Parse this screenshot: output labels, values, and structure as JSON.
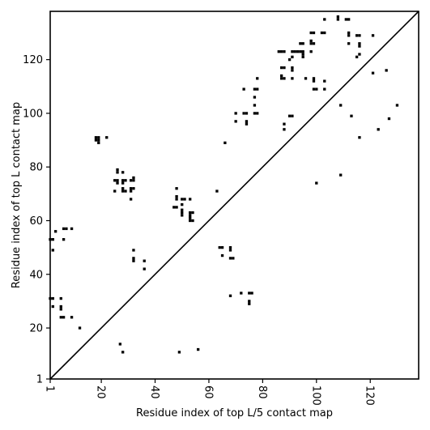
{
  "chart_data": {
    "type": "scatter",
    "xlabel": "Residue index of top L/5 contact map",
    "ylabel": "Residue index of top L contact map",
    "xlim": [
      1,
      138
    ],
    "ylim": [
      1,
      138
    ],
    "xticks": [
      {
        "value": 1,
        "label": "1"
      },
      {
        "value": 20,
        "label": "20"
      },
      {
        "value": 40,
        "label": "40"
      },
      {
        "value": 60,
        "label": "60"
      },
      {
        "value": 80,
        "label": "80"
      },
      {
        "value": 100,
        "label": "100"
      },
      {
        "value": 120,
        "label": "120"
      }
    ],
    "yticks": [
      {
        "value": 1,
        "label": "1"
      },
      {
        "value": 20,
        "label": "20"
      },
      {
        "value": 40,
        "label": "40"
      },
      {
        "value": 60,
        "label": "60"
      },
      {
        "value": 80,
        "label": "80"
      },
      {
        "value": 100,
        "label": "100"
      },
      {
        "value": 120,
        "label": "120"
      }
    ],
    "diagonal": true,
    "grid": false,
    "legend": "none",
    "marker_color": "#000000",
    "upper_triangle_points": [
      [
        18,
        91
      ],
      [
        18,
        90
      ],
      [
        19,
        91
      ],
      [
        19,
        90
      ],
      [
        19,
        89
      ],
      [
        22,
        91
      ],
      [
        26,
        79
      ],
      [
        26,
        78
      ],
      [
        25,
        75
      ],
      [
        26,
        75
      ],
      [
        26,
        74
      ],
      [
        25,
        71
      ],
      [
        28,
        78
      ],
      [
        28,
        75
      ],
      [
        29,
        75
      ],
      [
        28,
        74
      ],
      [
        28,
        72
      ],
      [
        29,
        71
      ],
      [
        28,
        71
      ],
      [
        31,
        75
      ],
      [
        32,
        76
      ],
      [
        32,
        75
      ],
      [
        31,
        72
      ],
      [
        32,
        72
      ],
      [
        31,
        71
      ],
      [
        31,
        68
      ],
      [
        48,
        72
      ],
      [
        48,
        69
      ],
      [
        48,
        68
      ],
      [
        47,
        65
      ],
      [
        48,
        65
      ],
      [
        50,
        68
      ],
      [
        51,
        68
      ],
      [
        50,
        66
      ],
      [
        50,
        64
      ],
      [
        50,
        63
      ],
      [
        50,
        62
      ],
      [
        53,
        68
      ],
      [
        53,
        63
      ],
      [
        54,
        63
      ],
      [
        53,
        62
      ],
      [
        53,
        61
      ],
      [
        53,
        60
      ],
      [
        54,
        60
      ],
      [
        63,
        71
      ],
      [
        66,
        89
      ],
      [
        70,
        100
      ],
      [
        70,
        97
      ],
      [
        73,
        100
      ],
      [
        74,
        100
      ],
      [
        74,
        97
      ],
      [
        74,
        96
      ],
      [
        73,
        109
      ],
      [
        77,
        109
      ],
      [
        78,
        109
      ],
      [
        77,
        106
      ],
      [
        77,
        103
      ],
      [
        77,
        100
      ],
      [
        78,
        100
      ],
      [
        78,
        113
      ],
      [
        86,
        123
      ],
      [
        87,
        123
      ],
      [
        88,
        123
      ],
      [
        87,
        117
      ],
      [
        88,
        117
      ],
      [
        87,
        114
      ],
      [
        87,
        113
      ],
      [
        88,
        113
      ],
      [
        88,
        96
      ],
      [
        88,
        94
      ],
      [
        90,
        120
      ],
      [
        91,
        121
      ],
      [
        91,
        123
      ],
      [
        92,
        123
      ],
      [
        93,
        123
      ],
      [
        91,
        117
      ],
      [
        91,
        116
      ],
      [
        91,
        113
      ],
      [
        91,
        99
      ],
      [
        90,
        99
      ],
      [
        94,
        126
      ],
      [
        95,
        126
      ],
      [
        94,
        123
      ],
      [
        95,
        123
      ],
      [
        95,
        122
      ],
      [
        95,
        121
      ],
      [
        96,
        113
      ],
      [
        98,
        130
      ],
      [
        99,
        130
      ],
      [
        98,
        127
      ],
      [
        98,
        126
      ],
      [
        99,
        126
      ],
      [
        98,
        123
      ],
      [
        99,
        113
      ],
      [
        99,
        112
      ],
      [
        99,
        109
      ],
      [
        100,
        109
      ],
      [
        100,
        74
      ],
      [
        102,
        130
      ],
      [
        103,
        130
      ],
      [
        103,
        135
      ],
      [
        103,
        112
      ],
      [
        103,
        109
      ],
      [
        108,
        136
      ],
      [
        108,
        135
      ],
      [
        109,
        103
      ],
      [
        109,
        77
      ],
      [
        111,
        135
      ],
      [
        112,
        135
      ],
      [
        112,
        130
      ],
      [
        112,
        129
      ],
      [
        112,
        126
      ],
      [
        113,
        99
      ],
      [
        115,
        129
      ],
      [
        116,
        129
      ],
      [
        116,
        126
      ],
      [
        116,
        125
      ],
      [
        116,
        122
      ],
      [
        115,
        121
      ],
      [
        116,
        91
      ],
      [
        121,
        129
      ],
      [
        121,
        115
      ],
      [
        123,
        94
      ],
      [
        126,
        116
      ],
      [
        127,
        98
      ],
      [
        130,
        103
      ]
    ],
    "lower_triangle_points": [
      [
        1,
        31
      ],
      [
        2,
        31
      ],
      [
        2,
        28
      ],
      [
        1,
        53
      ],
      [
        2,
        53
      ],
      [
        2,
        49
      ],
      [
        3,
        56
      ],
      [
        5,
        31
      ],
      [
        5,
        28
      ],
      [
        5,
        27
      ],
      [
        5,
        24
      ],
      [
        6,
        24
      ],
      [
        6,
        57
      ],
      [
        7,
        57
      ],
      [
        6,
        53
      ],
      [
        9,
        57
      ],
      [
        9,
        24
      ],
      [
        12,
        20
      ],
      [
        27,
        14
      ],
      [
        28,
        11
      ],
      [
        32,
        49
      ],
      [
        32,
        46
      ],
      [
        32,
        45
      ],
      [
        36,
        45
      ],
      [
        36,
        42
      ],
      [
        49,
        11
      ],
      [
        56,
        12
      ],
      [
        64,
        50
      ],
      [
        65,
        50
      ],
      [
        65,
        47
      ],
      [
        68,
        50
      ],
      [
        68,
        49
      ],
      [
        68,
        46
      ],
      [
        69,
        46
      ],
      [
        68,
        32
      ],
      [
        72,
        33
      ],
      [
        75,
        33
      ],
      [
        76,
        33
      ],
      [
        75,
        30
      ],
      [
        75,
        29
      ]
    ]
  }
}
